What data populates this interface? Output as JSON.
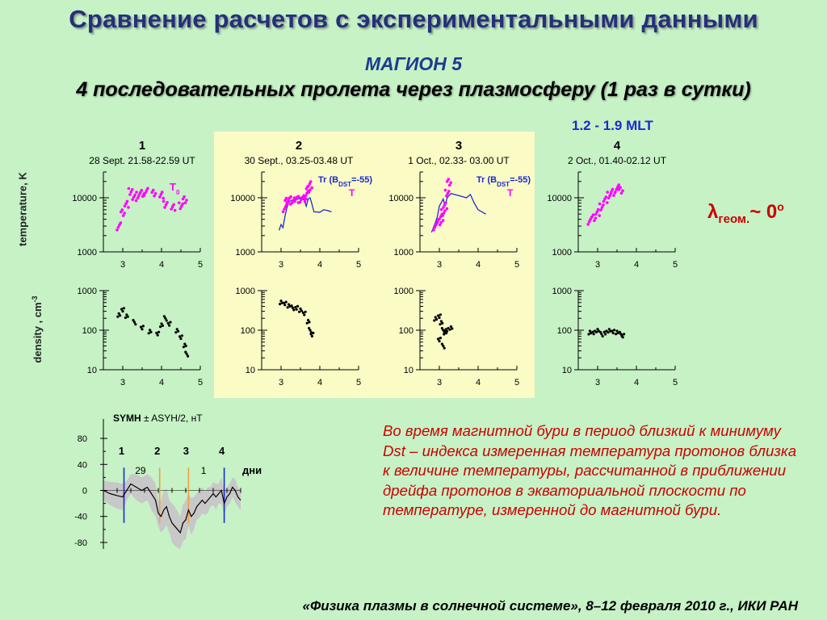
{
  "title": "Сравнение расчетов с экспериментальными данными",
  "satellite": "МАГИОН 5",
  "subtitle": "4 последовательных пролета через плазмосферу (1 раз в сутки)",
  "mlt_label": "1.2 - 1.9 MLT",
  "y_axis_temperature": "temperature, K",
  "y_axis_density": "density , cm",
  "y_axis_density_sup": "-3",
  "lambda_symbol": "λ",
  "lambda_sub": "геом.",
  "lambda_value": "~ 0",
  "lambda_sup": "o",
  "description": "Во время магнитной бури в период близкий к минимуму Dst – индекса измеренная температура протонов близка к величине температуры, рассчитанной в приближении дрейфа протонов в экваториальной плоскости по температуре, измеренной до магнитной бури.",
  "footer": "«Физика плазмы в солнечной системе», 8–12 февраля 2010 г., ИКИ РАН",
  "colors": {
    "measured_T": "#ff00ff",
    "model_T": "#1a2ad0",
    "density": "#000000",
    "title": "#24307a",
    "annotation": "#cc0000",
    "highlight": "#fbfbc6"
  },
  "chart_data": [
    {
      "type": "scatter",
      "group": "passes",
      "passes": [
        {
          "number": "1",
          "date": "28 Sept. 21.58-22.59 UT",
          "label_T0": "T",
          "label_T0_sub": "0",
          "temperature": [
            [
              2.9,
              3000
            ],
            [
              3.0,
              5200
            ],
            [
              3.1,
              7800
            ],
            [
              3.2,
              13500
            ],
            [
              3.3,
              9800
            ],
            [
              3.4,
              11000
            ],
            [
              3.5,
              12500
            ],
            [
              3.6,
              13000
            ],
            [
              3.8,
              12000
            ],
            [
              4.0,
              11500
            ],
            [
              4.1,
              7800
            ],
            [
              4.3,
              6500
            ],
            [
              4.5,
              7000
            ],
            [
              4.6,
              9500
            ]
          ],
          "density": [
            [
              2.9,
              250
            ],
            [
              3.0,
              320
            ],
            [
              3.1,
              220
            ],
            [
              3.3,
              160
            ],
            [
              3.5,
              120
            ],
            [
              3.7,
              95
            ],
            [
              3.9,
              80
            ],
            [
              4.0,
              130
            ],
            [
              4.1,
              200
            ],
            [
              4.2,
              150
            ],
            [
              4.4,
              100
            ],
            [
              4.5,
              65
            ],
            [
              4.6,
              40
            ],
            [
              4.65,
              25
            ]
          ]
        },
        {
          "number": "2",
          "date": "30 Sept., 03.25-03.48 UT",
          "label_Tr": "Tr (B",
          "label_Tr_sub": "DST",
          "label_Tr_tail": "=-55)",
          "label_T": "T",
          "temperature": [
            [
              3.1,
              6500
            ],
            [
              3.15,
              8500
            ],
            [
              3.2,
              9000
            ],
            [
              3.3,
              9500
            ],
            [
              3.4,
              9000
            ],
            [
              3.5,
              9200
            ],
            [
              3.6,
              10000
            ],
            [
              3.65,
              11500
            ],
            [
              3.7,
              14000
            ],
            [
              3.75,
              18000
            ]
          ],
          "model_T": [
            [
              2.95,
              2500
            ],
            [
              3.0,
              3200
            ],
            [
              3.05,
              2800
            ],
            [
              3.1,
              4500
            ],
            [
              3.15,
              6500
            ],
            [
              3.2,
              8500
            ],
            [
              3.3,
              9000
            ],
            [
              3.4,
              9200
            ],
            [
              3.5,
              10000
            ],
            [
              3.55,
              9500
            ],
            [
              3.6,
              9000
            ],
            [
              3.65,
              7000
            ],
            [
              3.7,
              9500
            ],
            [
              3.75,
              10000
            ],
            [
              3.8,
              7500
            ],
            [
              3.85,
              5500
            ],
            [
              4.0,
              5400
            ],
            [
              4.1,
              6000
            ],
            [
              4.2,
              5800
            ],
            [
              4.3,
              5500
            ]
          ],
          "density": [
            [
              3.0,
              520
            ],
            [
              3.1,
              460
            ],
            [
              3.2,
              400
            ],
            [
              3.3,
              370
            ],
            [
              3.4,
              380
            ],
            [
              3.5,
              330
            ],
            [
              3.6,
              260
            ],
            [
              3.7,
              160
            ],
            [
              3.75,
              100
            ],
            [
              3.8,
              80
            ]
          ]
        },
        {
          "number": "3",
          "date": "1 Oct., 02.33- 03.00 UT",
          "label_Tr": "Tr (B",
          "label_Tr_sub": "DST",
          "label_Tr_tail": "=-55)",
          "label_T": "T",
          "temperature": [
            [
              2.9,
              3000
            ],
            [
              3.0,
              3500
            ],
            [
              3.05,
              4500
            ],
            [
              3.1,
              5500
            ],
            [
              3.15,
              7000
            ],
            [
              3.2,
              12000
            ],
            [
              3.25,
              20000
            ]
          ],
          "model_T": [
            [
              2.8,
              2300
            ],
            [
              2.9,
              3500
            ],
            [
              2.95,
              4500
            ],
            [
              3.0,
              7000
            ],
            [
              3.1,
              9500
            ],
            [
              3.15,
              7000
            ],
            [
              3.2,
              10000
            ],
            [
              3.3,
              12000
            ],
            [
              3.5,
              11000
            ],
            [
              3.7,
              10000
            ],
            [
              3.8,
              11500
            ],
            [
              3.9,
              8000
            ],
            [
              4.0,
              6000
            ],
            [
              4.2,
              5000
            ]
          ],
          "density": [
            [
              2.9,
              200
            ],
            [
              3.0,
              220
            ],
            [
              3.05,
              150
            ],
            [
              3.1,
              100
            ],
            [
              3.0,
              60
            ],
            [
              3.15,
              90
            ],
            [
              3.2,
              100
            ],
            [
              3.3,
              110
            ],
            [
              3.1,
              40
            ]
          ]
        },
        {
          "number": "4",
          "date": "2 Oct., 01.40-02.12 UT",
          "temperature": [
            [
              2.8,
              3800
            ],
            [
              2.9,
              4200
            ],
            [
              3.0,
              5500
            ],
            [
              3.1,
              7000
            ],
            [
              3.2,
              9000
            ],
            [
              3.3,
              11000
            ],
            [
              3.4,
              13000
            ],
            [
              3.5,
              15000
            ],
            [
              3.6,
              13500
            ]
          ],
          "density": [
            [
              2.8,
              90
            ],
            [
              2.9,
              85
            ],
            [
              3.0,
              95
            ],
            [
              3.1,
              80
            ],
            [
              3.2,
              90
            ],
            [
              3.3,
              100
            ],
            [
              3.4,
              90
            ],
            [
              3.5,
              85
            ],
            [
              3.6,
              80
            ],
            [
              3.65,
              75
            ]
          ]
        }
      ],
      "x_ticks": [
        "3",
        "4",
        "5"
      ],
      "xlim": [
        2.5,
        5.0
      ],
      "temperature_ticks": [
        "10000",
        "1000"
      ],
      "temperature_ylim": [
        1000,
        30000
      ],
      "density_ticks": [
        "1000",
        "100",
        "10"
      ],
      "density_ylim": [
        10,
        1000
      ],
      "log_y": true
    },
    {
      "type": "line",
      "group": "symh",
      "title_bold": "SYMH",
      "title_rest": " ± ASYH/2, нТ",
      "y_ticks": [
        "80",
        "40",
        "0",
        "-40",
        "-80"
      ],
      "ylim": [
        -90,
        90
      ],
      "xlim": [
        0,
        100
      ],
      "day_labels": [
        "29",
        "1"
      ],
      "day_label_positions": [
        27,
        73
      ],
      "x_unit_label": "дни",
      "passes": [
        {
          "label": "1",
          "x": 15,
          "color": "#1a2ad0"
        },
        {
          "label": "2",
          "x": 41,
          "color": "#f0a040"
        },
        {
          "label": "3",
          "x": 62,
          "color": "#f0a040"
        },
        {
          "label": "4",
          "x": 88,
          "color": "#1a2ad0"
        }
      ],
      "series": [
        {
          "name": "SYMH",
          "x": [
            0,
            5,
            10,
            14,
            17,
            20,
            24,
            28,
            32,
            35,
            38,
            40,
            42,
            44,
            46,
            48,
            50,
            52,
            54,
            56,
            58,
            60,
            62,
            64,
            66,
            68,
            70,
            72,
            74,
            76,
            78,
            80,
            82,
            84,
            86,
            88,
            90,
            92,
            94,
            96,
            98,
            100
          ],
          "y": [
            0,
            -5,
            -8,
            -10,
            0,
            10,
            5,
            0,
            5,
            -5,
            -15,
            -35,
            -40,
            -30,
            -25,
            -40,
            -50,
            -55,
            -60,
            -65,
            -50,
            -45,
            -30,
            -40,
            -35,
            -25,
            -20,
            -15,
            -20,
            -15,
            -10,
            -5,
            -10,
            -5,
            0,
            -20,
            -10,
            -5,
            5,
            0,
            -10,
            -15
          ]
        }
      ],
      "band_halfwidth": [
        15,
        18,
        20,
        20,
        15,
        15,
        20,
        20,
        20,
        25,
        25,
        20,
        25,
        30,
        28,
        25,
        30,
        30,
        28,
        25,
        28,
        30,
        25,
        28,
        25,
        20,
        22,
        20,
        18,
        20,
        15,
        18,
        20,
        15,
        20,
        18,
        15,
        15,
        15,
        18,
        15,
        15
      ]
    }
  ]
}
